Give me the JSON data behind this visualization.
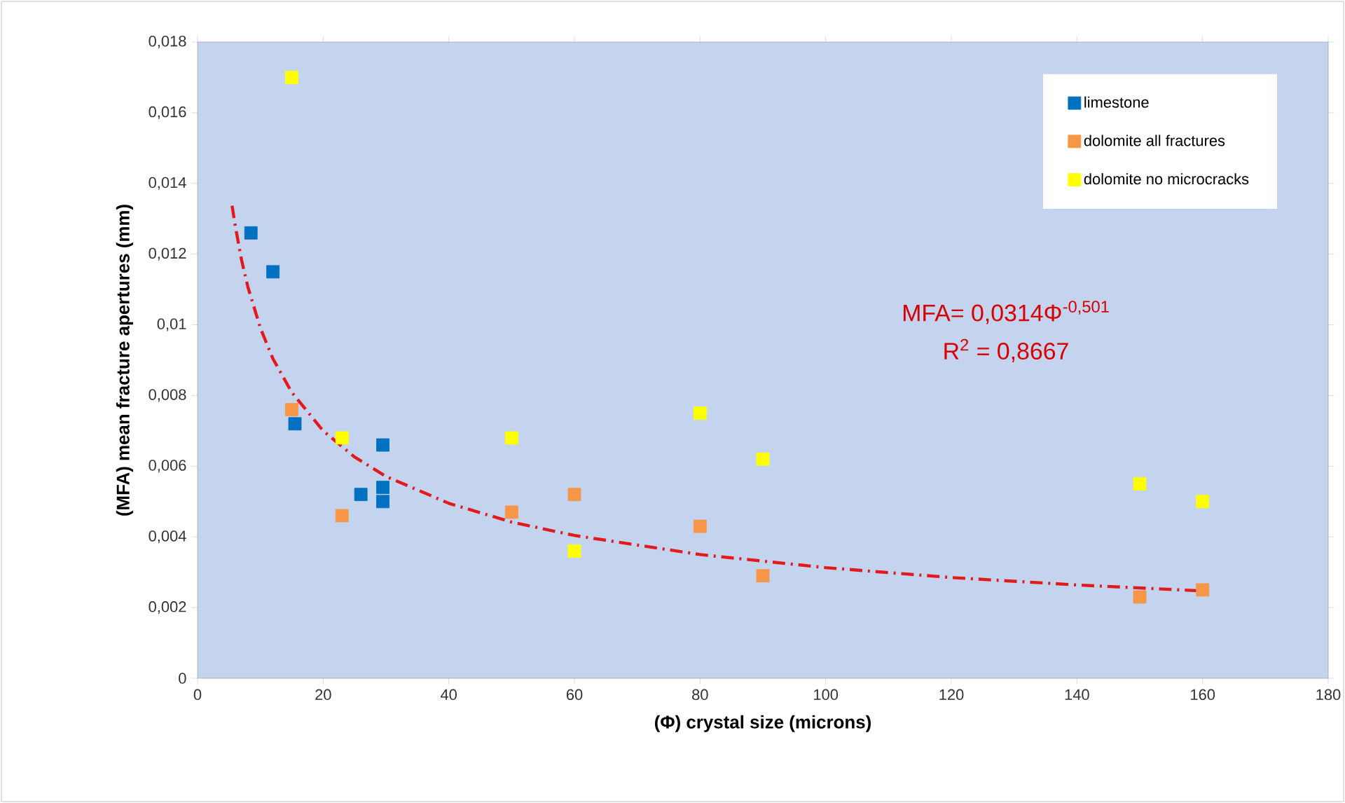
{
  "chart_data": {
    "type": "scatter",
    "xlabel": "(Φ) crystal size (microns)",
    "ylabel": "(MFA) mean fracture apertures (mm)",
    "xlim": [
      0,
      180
    ],
    "xticks": [
      0,
      20,
      40,
      60,
      80,
      100,
      120,
      140,
      160,
      180
    ],
    "ylim": [
      0,
      0.018
    ],
    "yticks": [
      {
        "value": 0,
        "label": "0"
      },
      {
        "value": 0.002,
        "label": "0,002"
      },
      {
        "value": 0.004,
        "label": "0,004"
      },
      {
        "value": 0.006,
        "label": "0,006"
      },
      {
        "value": 0.008,
        "label": "0,008"
      },
      {
        "value": 0.01,
        "label": "0,01"
      },
      {
        "value": 0.012,
        "label": "0,012"
      },
      {
        "value": 0.014,
        "label": "0,014"
      },
      {
        "value": 0.016,
        "label": "0,016"
      },
      {
        "value": 0.018,
        "label": "0,018"
      }
    ],
    "grid": false,
    "legend": "top right",
    "marker": "square",
    "series": [
      {
        "name": "limestone",
        "color": "#0070c0",
        "x": [
          8.5,
          12,
          15.5,
          26,
          29.5,
          29.5,
          29.5
        ],
        "values": [
          0.0126,
          0.0115,
          0.0072,
          0.0052,
          0.0066,
          0.0054,
          0.005
        ]
      },
      {
        "name": "dolomite all fractures",
        "color": "#f79646",
        "x": [
          15,
          23,
          50,
          60,
          80,
          90,
          150,
          160
        ],
        "values": [
          0.0076,
          0.0046,
          0.0047,
          0.0052,
          0.0043,
          0.0029,
          0.0023,
          0.0025
        ]
      },
      {
        "name": "dolomite no microcracks",
        "color": "#ffff00",
        "x": [
          15,
          23,
          50,
          60,
          80,
          90,
          150,
          160
        ],
        "values": [
          0.017,
          0.0068,
          0.0068,
          0.0036,
          0.0075,
          0.0062,
          0.0055,
          0.005
        ]
      },
      {
        "type": "line",
        "color": "#e31a1c",
        "line_style": "dashed",
        "marker": "none",
        "x": [
          5.5,
          6,
          7,
          8,
          10,
          12,
          15,
          20,
          25,
          30,
          40,
          50,
          60,
          80,
          100,
          120,
          140,
          160
        ],
        "values": [
          0.01337,
          0.0128,
          0.01184,
          0.01108,
          0.00991,
          0.00904,
          0.00809,
          0.007,
          0.00626,
          0.00571,
          0.00495,
          0.00442,
          0.00404,
          0.0035,
          0.00313,
          0.00285,
          0.00264,
          0.00247
        ]
      }
    ],
    "annotations": [
      "MFA= 0,0314Φ$^{-0,501}$",
      "R$^{2}$ = 0,8667"
    ]
  }
}
